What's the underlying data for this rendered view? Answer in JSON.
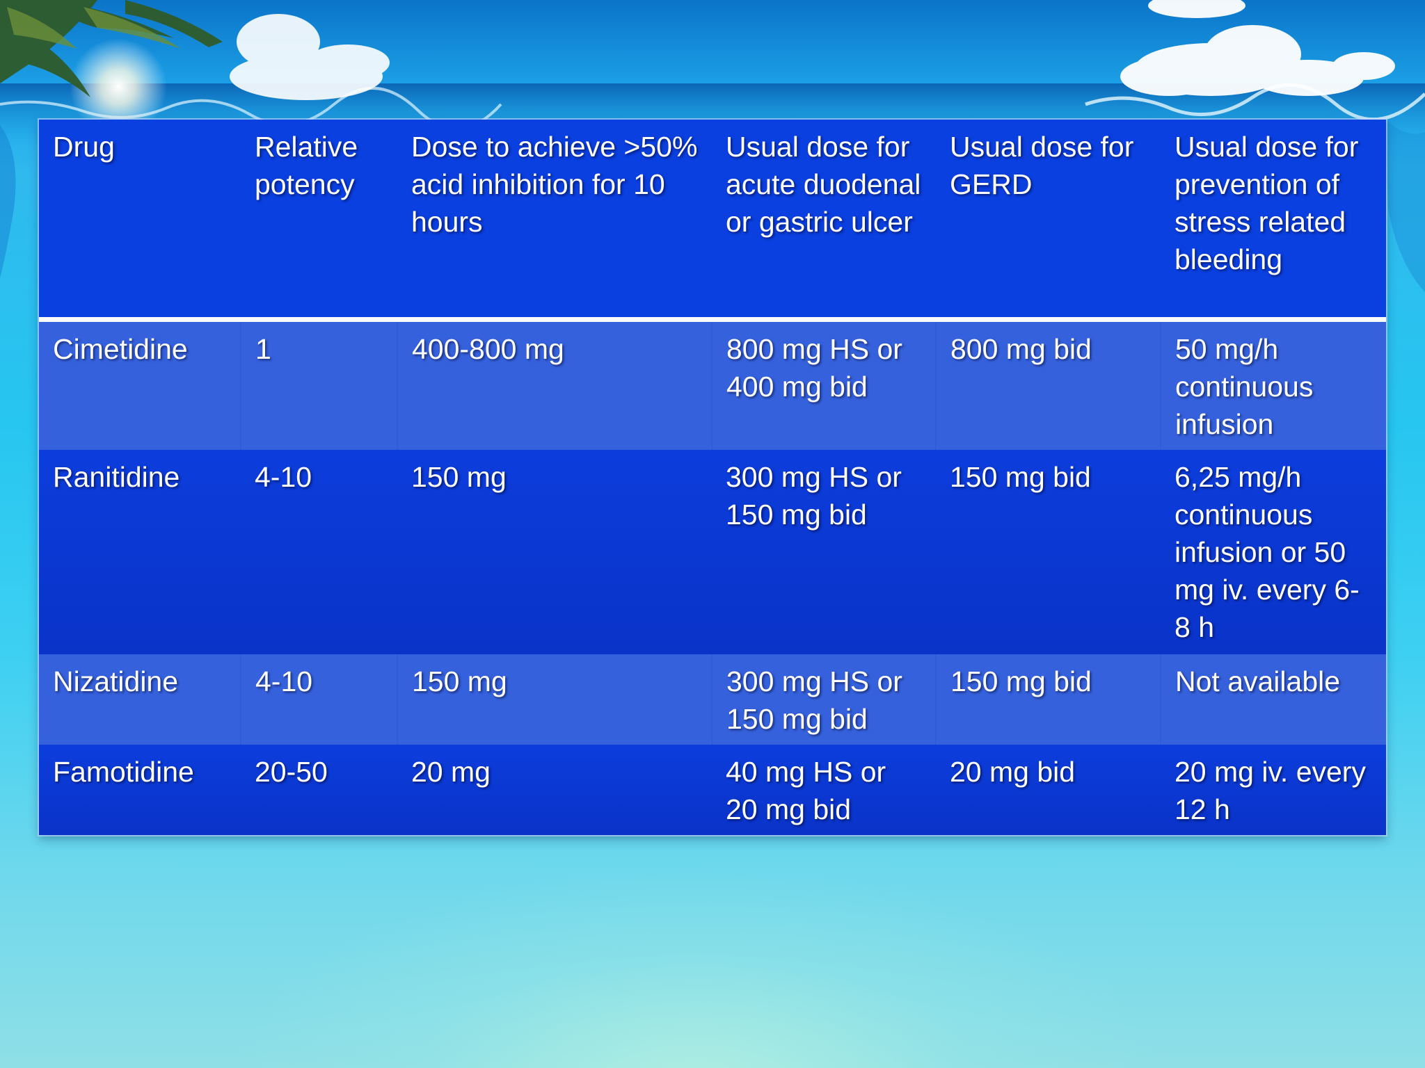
{
  "table": {
    "headers": [
      "Drug",
      "Relative potency",
      "Dose to achieve >50% acid inhibition for 10 hours",
      "Usual dose for acute duodenal or gastric ulcer",
      "Usual dose for GERD",
      "Usual dose for prevention of stress related bleeding"
    ],
    "rows": [
      [
        "Cimetidine",
        "1",
        "400-800 mg",
        "800 mg HS or 400 mg bid",
        "800 mg bid",
        "50 mg/h continuous infusion"
      ],
      [
        "Ranitidine",
        "4-10",
        "150 mg",
        "300 mg HS or 150 mg bid",
        "150 mg bid",
        "6,25 mg/h continuous infusion or 50 mg iv. every 6-8 h"
      ],
      [
        "Nizatidine",
        "4-10",
        "150 mg",
        "300 mg HS or 150 mg bid",
        "150 mg bid",
        "Not available"
      ],
      [
        "Famotidine",
        "20-50",
        "20 mg",
        "40 mg HS or 20 mg bid",
        "20 mg bid",
        "20 mg iv. every 12 h"
      ]
    ]
  },
  "colors": {
    "header_bg": "#0a3fe0",
    "row_light_bg": "#3561dd",
    "row_dark_bg": "#0a36d0",
    "text": "#ffffff"
  }
}
